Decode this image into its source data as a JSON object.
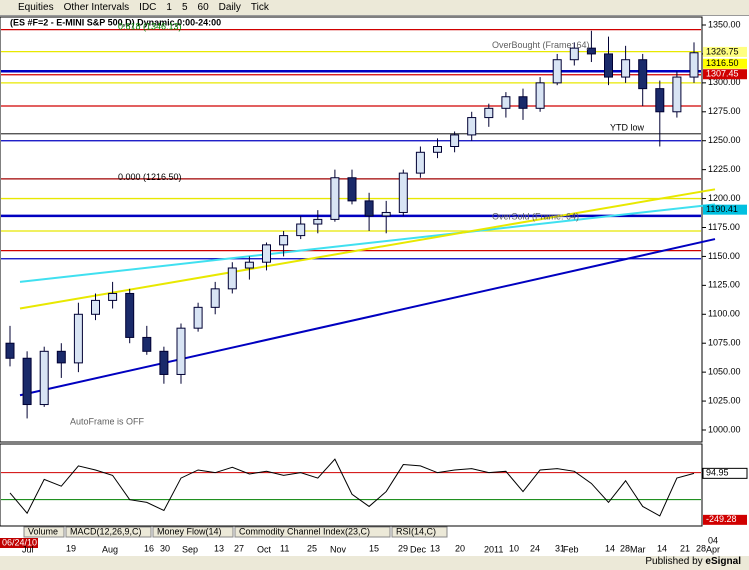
{
  "toolbar": [
    "Equities",
    "Other Intervals",
    "IDC",
    "1",
    "5",
    "60",
    "Daily",
    "Tick"
  ],
  "title": "(ES #F=2 - E-MINI S&P 500,D) Dynamic,0:00-24:00",
  "annotations": {
    "fib_top": "0.618 (1346.13)",
    "fib_zero": "0.000 (1216.50)",
    "overbought": "OverBought (Frame: 64)",
    "oversold": "OverSold (Frame: 64)",
    "ytd": "YTD low",
    "autoframe": "AutoFrame is OFF"
  },
  "tabs": [
    "Volume",
    "MACD(12,26,9,C)",
    "Money Flow(14)",
    "Commodity Channel Index(23,C)",
    "RSI(14,C)"
  ],
  "date_axis": {
    "days": [
      "06/24/10",
      "19",
      "16",
      "30",
      "13",
      "27",
      "11",
      "25",
      "15",
      "29",
      "13",
      "20",
      "10",
      "24",
      "31",
      "14",
      "28",
      "14",
      "21",
      "28",
      "04"
    ],
    "months": [
      "Jul",
      "Aug",
      "Sep",
      "Oct",
      "Nov",
      "Dec",
      "2011",
      "Feb",
      "Mar",
      "Apr"
    ]
  },
  "status": {
    "published": "Published by",
    "brand": "eSignal"
  },
  "chart_data": {
    "type": "candlestick",
    "ylim": [
      1000,
      1350
    ],
    "yticks": [
      {
        "value": 1000,
        "label": "1000.00"
      },
      {
        "value": 1025,
        "label": "1025.00"
      },
      {
        "value": 1050,
        "label": "1050.00"
      },
      {
        "value": 1075,
        "label": "1075.00"
      },
      {
        "value": 1100,
        "label": "1100.00"
      },
      {
        "value": 1125,
        "label": "1125.00"
      },
      {
        "value": 1150,
        "label": "1150.00"
      },
      {
        "value": 1175,
        "label": "1175.00"
      },
      {
        "value": 1200,
        "label": "1200.00"
      },
      {
        "value": 1225,
        "label": "1225.00"
      },
      {
        "value": 1250,
        "label": "1250.00"
      },
      {
        "value": 1275,
        "label": "1275.00"
      },
      {
        "value": 1300,
        "label": "1300.00"
      },
      {
        "value": 1325,
        "label": "1325.00"
      },
      {
        "value": 1350,
        "label": "1350.00"
      }
    ],
    "open": [
      1075,
      1062,
      1022,
      1068,
      1058,
      1100,
      1112,
      1118,
      1080,
      1068,
      1048,
      1088,
      1106,
      1122,
      1140,
      1145,
      1160,
      1168,
      1178,
      1182,
      1218,
      1198,
      1185,
      1188,
      1222,
      1240,
      1245,
      1255,
      1270,
      1278,
      1288,
      1278,
      1300,
      1320,
      1330,
      1325,
      1305,
      1320,
      1295,
      1275,
      1305
    ],
    "high": [
      1090,
      1068,
      1072,
      1075,
      1110,
      1118,
      1128,
      1122,
      1090,
      1072,
      1092,
      1110,
      1128,
      1145,
      1150,
      1162,
      1172,
      1185,
      1190,
      1225,
      1225,
      1205,
      1198,
      1225,
      1245,
      1252,
      1258,
      1275,
      1282,
      1292,
      1295,
      1305,
      1325,
      1335,
      1345,
      1340,
      1332,
      1325,
      1302,
      1310,
      1335
    ],
    "low": [
      1055,
      1010,
      1020,
      1045,
      1050,
      1095,
      1105,
      1075,
      1065,
      1040,
      1040,
      1085,
      1100,
      1118,
      1130,
      1138,
      1150,
      1165,
      1170,
      1180,
      1195,
      1172,
      1170,
      1185,
      1218,
      1235,
      1240,
      1250,
      1262,
      1270,
      1268,
      1275,
      1298,
      1315,
      1318,
      1298,
      1300,
      1280,
      1245,
      1270,
      1300
    ],
    "close": [
      1062,
      1022,
      1068,
      1058,
      1100,
      1112,
      1118,
      1080,
      1068,
      1048,
      1088,
      1106,
      1122,
      1140,
      1145,
      1160,
      1168,
      1178,
      1182,
      1218,
      1198,
      1185,
      1188,
      1222,
      1240,
      1245,
      1255,
      1270,
      1278,
      1288,
      1278,
      1300,
      1320,
      1330,
      1325,
      1305,
      1320,
      1295,
      1275,
      1305,
      1326
    ],
    "levels": [
      1346,
      1327,
      1310,
      1307,
      1300,
      1280,
      1256,
      1250,
      1217,
      1200,
      1185,
      1172,
      1155,
      1148
    ],
    "level_colors": [
      "#d00000",
      "#e8e800",
      "#0000c0",
      "#d00000",
      "#e8e800",
      "#d00000",
      "#404040",
      "#0000c0",
      "#a00000",
      "#e8e800",
      "#0000c0",
      "#e8e800",
      "#d00000",
      "#0000c0"
    ],
    "price_labels": [
      {
        "value": 1326.75,
        "label": "1326.75",
        "color": "#ffff80"
      },
      {
        "value": 1316.5,
        "label": "1316.50",
        "color": "#ffff00"
      },
      {
        "value": 1307.45,
        "label": "1307.45",
        "color": "#d00000"
      },
      {
        "value": 1190.41,
        "label": "1190.41",
        "color": "#00c0e0"
      }
    ],
    "trendlines": [
      {
        "color": "#0000c0",
        "values": [
          1030,
          1165
        ]
      },
      {
        "color": "#40e0f0",
        "values": [
          1128,
          1195
        ]
      },
      {
        "color": "#e8e800",
        "values": [
          1105,
          1208
        ]
      }
    ],
    "oscillator": {
      "ylim": [
        -280,
        290
      ],
      "levels": [
        100,
        -100
      ],
      "level_colors": [
        "#d00000",
        "#008000"
      ],
      "values": [
        -50,
        -200,
        50,
        0,
        150,
        120,
        80,
        -100,
        -120,
        -180,
        60,
        120,
        100,
        140,
        90,
        110,
        80,
        100,
        60,
        200,
        -60,
        -150,
        -40,
        160,
        150,
        100,
        120,
        130,
        100,
        110,
        -40,
        120,
        130,
        110,
        20,
        -120,
        40,
        -150,
        -220,
        60,
        94.95
      ],
      "last_label": "94.95",
      "min_label": "-249.28",
      "min_value": -249.28
    }
  }
}
